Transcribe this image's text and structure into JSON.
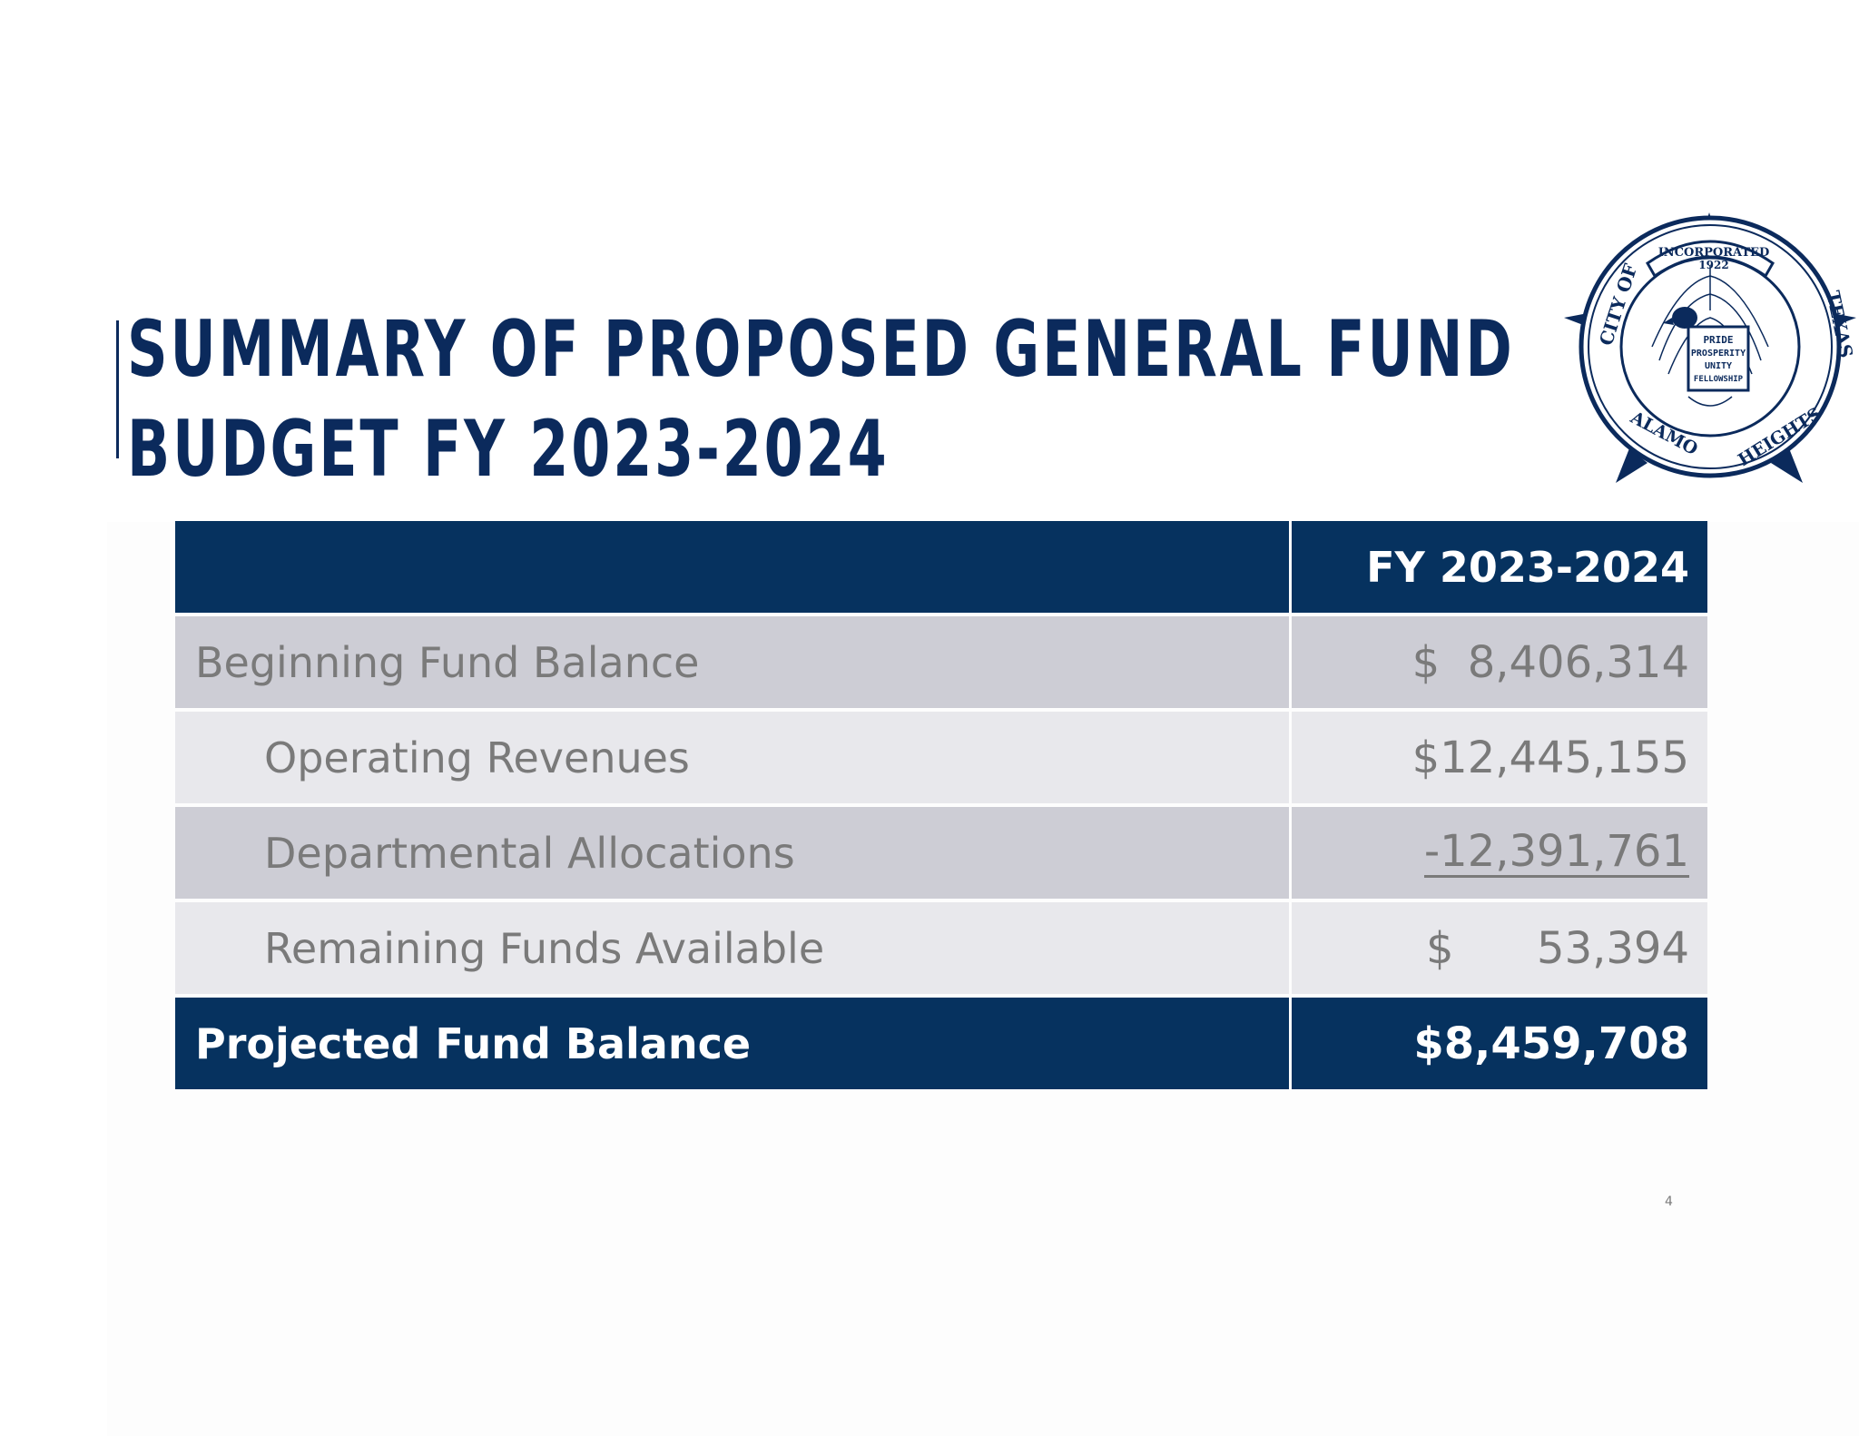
{
  "slide": {
    "title_line1": "SUMMARY OF PROPOSED GENERAL FUND",
    "title_line2": "BUDGET FY 2023-2024",
    "page_number": "4"
  },
  "seal": {
    "top_banner": "INCORPORATED",
    "year": "1922",
    "left_text": "CITY OF",
    "bottom_left": "ALAMO",
    "bottom_right": "HEIGHTS",
    "right_text": "TEXAS",
    "motto": [
      "PRIDE",
      "PROSPERITY",
      "UNITY",
      "FELLOWSHIP"
    ]
  },
  "table": {
    "header": {
      "label": "",
      "value": "FY 2023-2024"
    },
    "rows": [
      {
        "label": "Beginning Fund Balance",
        "value": "$  8,406,314"
      },
      {
        "label": "Operating Revenues",
        "value": "$12,445,155"
      },
      {
        "label": "Departmental Allocations",
        "value": "-12,391,761"
      },
      {
        "label": "Remaining Funds Available",
        "value": "$      53,394"
      }
    ],
    "total": {
      "label": "Projected Fund Balance",
      "value": "$8,459,708"
    }
  },
  "colors": {
    "navy": "#06325f",
    "title_navy": "#0b2a5c",
    "row_dark": "#cdcdd5",
    "row_light": "#e8e8ec",
    "text_gray": "#7a7a7a"
  }
}
